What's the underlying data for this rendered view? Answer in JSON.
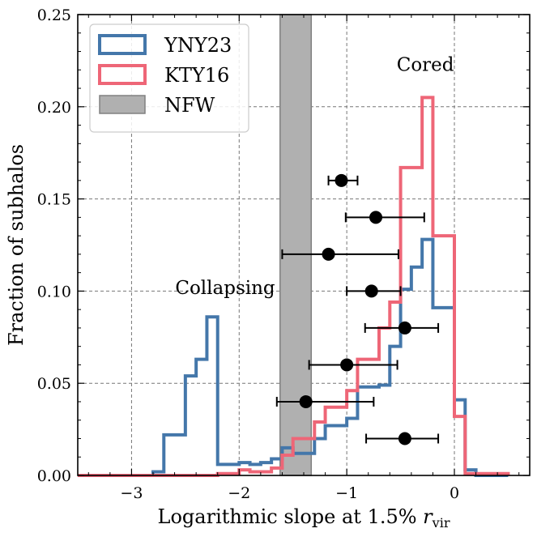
{
  "chart_data": {
    "type": "histogram",
    "title": "",
    "xlabel": "Logarithmic slope at 1.5% ",
    "xlabel_symbol": "r",
    "xlabel_subscript": "vir",
    "ylabel": "Fraction of subhalos",
    "xlim": [
      -3.5,
      0.7
    ],
    "ylim": [
      0.0,
      0.25
    ],
    "x_ticks": [
      -3,
      -2,
      -1,
      0
    ],
    "x_tick_labels": [
      "−3",
      "−2",
      "−1",
      "0"
    ],
    "y_ticks": [
      0.0,
      0.05,
      0.1,
      0.15,
      0.2,
      0.25
    ],
    "y_tick_labels": [
      "0.00",
      "0.05",
      "0.10",
      "0.15",
      "0.20",
      "0.25"
    ],
    "grid": true,
    "legend_position": "top-left",
    "bin_edges": [
      -3.5,
      -3.4,
      -3.3,
      -3.2,
      -3.1,
      -3.0,
      -2.9,
      -2.8,
      -2.7,
      -2.6,
      -2.5,
      -2.4,
      -2.3,
      -2.2,
      -2.1,
      -2.0,
      -1.9,
      -1.8,
      -1.7,
      -1.6,
      -1.5,
      -1.4,
      -1.3,
      -1.2,
      -1.1,
      -1.0,
      -0.9,
      -0.8,
      -0.7,
      -0.6,
      -0.5,
      -0.4,
      -0.3,
      -0.2,
      -0.1,
      0.0,
      0.1,
      0.2,
      0.3,
      0.4,
      0.5
    ],
    "series": [
      {
        "name": "YNY23",
        "color": "#4477aa",
        "values": [
          0,
          0,
          0,
          0,
          0,
          0,
          0,
          0.002,
          0.022,
          0.022,
          0.054,
          0.063,
          0.086,
          0.006,
          0.006,
          0.007,
          0.006,
          0.007,
          0.009,
          0.015,
          0.012,
          0.012,
          0.02,
          0.027,
          0.027,
          0.031,
          0.048,
          0.048,
          0.049,
          0.07,
          0.101,
          0.113,
          0.128,
          0.091,
          0.091,
          0.041,
          0.003,
          0,
          0,
          0
        ]
      },
      {
        "name": "KTY16",
        "color": "#ee6677",
        "values": [
          0,
          0,
          0,
          0,
          0,
          0,
          0,
          0,
          0,
          0,
          0,
          0,
          0,
          0.001,
          0.001,
          0.003,
          0.002,
          0.002,
          0.004,
          0.011,
          0.02,
          0.02,
          0.029,
          0.037,
          0.037,
          0.046,
          0.063,
          0.063,
          0.08,
          0.094,
          0.167,
          0.167,
          0.205,
          0.13,
          0.13,
          0.032,
          0.001,
          0.001,
          0.001,
          0.001
        ]
      }
    ],
    "nfw_band": {
      "name": "NFW",
      "color": "#999999",
      "x_range": [
        -1.62,
        -1.33
      ]
    },
    "points": [
      {
        "x": -1.05,
        "y": 0.16,
        "xerr_low": 0.12,
        "xerr_high": 0.15
      },
      {
        "x": -0.73,
        "y": 0.14,
        "xerr_low": 0.28,
        "xerr_high": 0.45
      },
      {
        "x": -1.17,
        "y": 0.12,
        "xerr_low": 0.43,
        "xerr_high": 0.65
      },
      {
        "x": -0.77,
        "y": 0.1,
        "xerr_low": 0.23,
        "xerr_high": 0.27
      },
      {
        "x": -0.46,
        "y": 0.08,
        "xerr_low": 0.37,
        "xerr_high": 0.31
      },
      {
        "x": -1.0,
        "y": 0.06,
        "xerr_low": 0.35,
        "xerr_high": 0.47
      },
      {
        "x": -1.38,
        "y": 0.04,
        "xerr_low": 0.27,
        "xerr_high": 0.63
      },
      {
        "x": -0.46,
        "y": 0.02,
        "xerr_low": 0.36,
        "xerr_high": 0.31
      }
    ],
    "annotations": [
      {
        "text": "Cored",
        "x": -0.27,
        "y": 0.223
      },
      {
        "text": "Collapsing",
        "x": -2.13,
        "y": 0.102
      }
    ]
  }
}
